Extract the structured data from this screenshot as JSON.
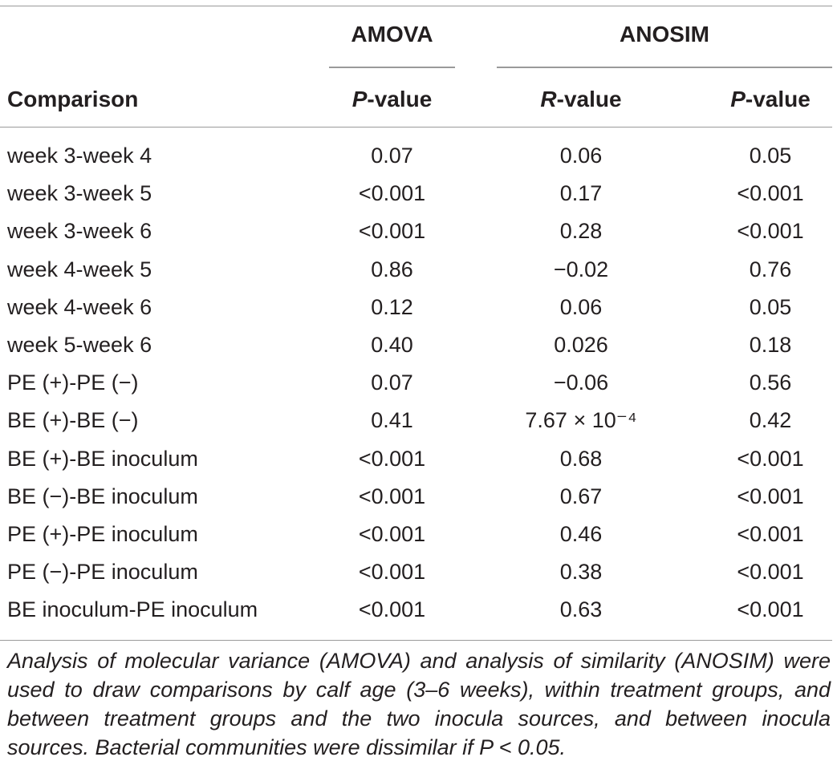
{
  "table": {
    "group_headers": {
      "amova": "AMOVA",
      "anosim": "ANOSIM"
    },
    "column_headers": {
      "comparison": "Comparison",
      "amova_p_italic": "P",
      "amova_p_rest": "-value",
      "anosim_r_italic": "R",
      "anosim_r_rest": "-value",
      "anosim_p_italic": "P",
      "anosim_p_rest": "-value"
    },
    "rows": [
      {
        "comparison": "week 3-week 4",
        "amova_p": "0.07",
        "anosim_r": "0.06",
        "anosim_p": "0.05"
      },
      {
        "comparison": "week 3-week 5",
        "amova_p": "<0.001",
        "anosim_r": "0.17",
        "anosim_p": "<0.001"
      },
      {
        "comparison": "week 3-week 6",
        "amova_p": "<0.001",
        "anosim_r": "0.28",
        "anosim_p": "<0.001"
      },
      {
        "comparison": "week 4-week 5",
        "amova_p": "0.86",
        "anosim_r": "−0.02",
        "anosim_p": "0.76"
      },
      {
        "comparison": "week 4-week 6",
        "amova_p": "0.12",
        "anosim_r": "0.06",
        "anosim_p": "0.05"
      },
      {
        "comparison": "week 5-week 6",
        "amova_p": "0.40",
        "anosim_r": "0.026",
        "anosim_p": "0.18"
      },
      {
        "comparison": "PE (+)-PE (−)",
        "amova_p": "0.07",
        "anosim_r": "−0.06",
        "anosim_p": "0.56"
      },
      {
        "comparison": "BE (+)-BE (−)",
        "amova_p": "0.41",
        "anosim_r": "7.67 × 10⁻⁴",
        "anosim_p": "0.42"
      },
      {
        "comparison": "BE (+)-BE inoculum",
        "amova_p": "<0.001",
        "anosim_r": "0.68",
        "anosim_p": "<0.001"
      },
      {
        "comparison": "BE (−)-BE inoculum",
        "amova_p": "<0.001",
        "anosim_r": "0.67",
        "anosim_p": "<0.001"
      },
      {
        "comparison": "PE (+)-PE inoculum",
        "amova_p": "<0.001",
        "anosim_r": "0.46",
        "anosim_p": "<0.001"
      },
      {
        "comparison": "PE (−)-PE inoculum",
        "amova_p": "<0.001",
        "anosim_r": "0.38",
        "anosim_p": "<0.001"
      },
      {
        "comparison": "BE inoculum-PE inoculum",
        "amova_p": "<0.001",
        "anosim_r": "0.63",
        "anosim_p": "<0.001"
      }
    ],
    "footnote": "Analysis of molecular variance (AMOVA) and analysis of similarity (ANOSIM) were used to draw comparisons by calf age (3–6 weeks), within treatment groups, and between treatment groups and the two inocula sources, and between inocula sources. Bacterial communities were dissimilar if P < 0.05."
  }
}
